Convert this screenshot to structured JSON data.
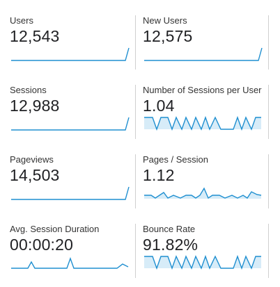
{
  "colors": {
    "line": "#1f8fd0",
    "fill": "#d7ecf8",
    "separator": "#cfcfcf"
  },
  "metrics": [
    {
      "label": "Users",
      "value": "12,543"
    },
    {
      "label": "New Users",
      "value": "12,575"
    },
    {
      "label": "Sessions",
      "value": "12,988"
    },
    {
      "label": "Number of Sessions per User",
      "value": "1.04"
    },
    {
      "label": "Pageviews",
      "value": "14,503"
    },
    {
      "label": "Pages / Session",
      "value": "1.12"
    },
    {
      "label": "Avg. Session Duration",
      "value": "00:00:20"
    },
    {
      "label": "Bounce Rate",
      "value": "91.82%"
    }
  ]
}
